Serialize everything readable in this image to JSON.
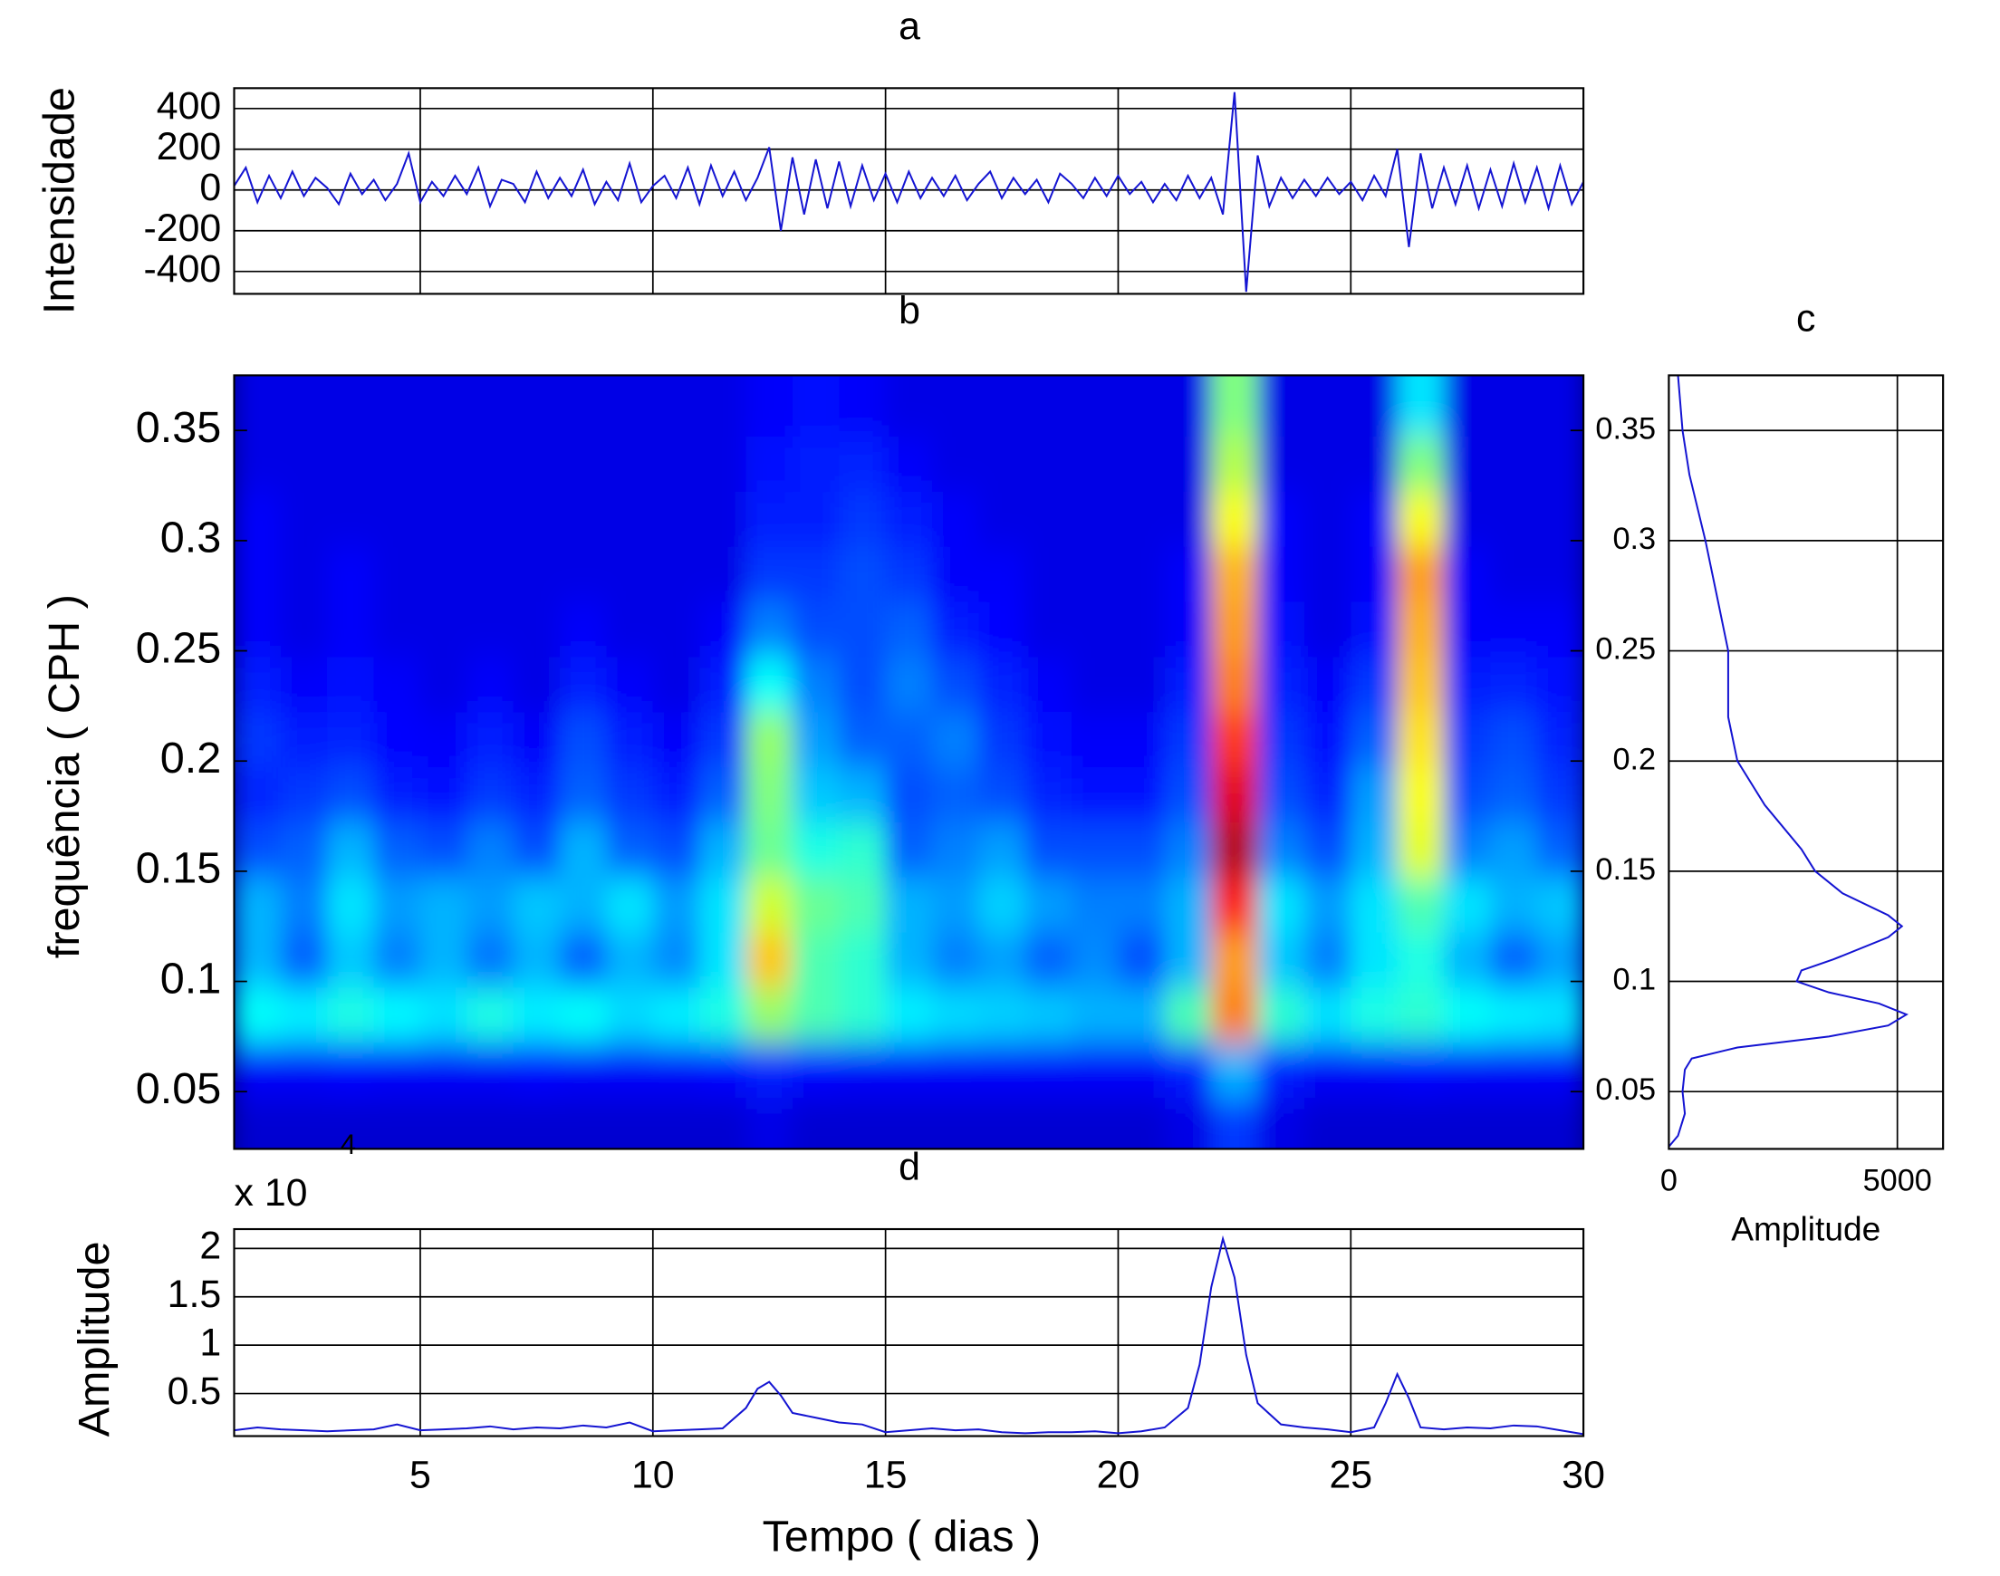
{
  "chart_data": [
    {
      "type": "line",
      "title": "a",
      "ylabel": "Intensidade",
      "color": "#1414d2",
      "grid": true,
      "xtick_labels": false,
      "xlim": [
        1,
        30
      ],
      "xticks": [
        5,
        10,
        15,
        20,
        25,
        30
      ],
      "ylim": [
        -510,
        500
      ],
      "yticks": [
        400,
        200,
        0,
        -200,
        -400
      ],
      "x": [
        1,
        1.25,
        1.5,
        1.75,
        2,
        2.25,
        2.5,
        2.75,
        3,
        3.25,
        3.5,
        3.75,
        4,
        4.25,
        4.5,
        4.75,
        5,
        5.25,
        5.5,
        5.75,
        6,
        6.25,
        6.5,
        6.75,
        7,
        7.25,
        7.5,
        7.75,
        8,
        8.25,
        8.5,
        8.75,
        9,
        9.25,
        9.5,
        9.75,
        10,
        10.25,
        10.5,
        10.75,
        11,
        11.25,
        11.5,
        11.75,
        12,
        12.25,
        12.5,
        12.75,
        13,
        13.25,
        13.5,
        13.75,
        14,
        14.25,
        14.5,
        14.75,
        15,
        15.25,
        15.5,
        15.75,
        16,
        16.25,
        16.5,
        16.75,
        17,
        17.25,
        17.5,
        17.75,
        18,
        18.25,
        18.5,
        18.75,
        19,
        19.25,
        19.5,
        19.75,
        20,
        20.25,
        20.5,
        20.75,
        21,
        21.25,
        21.5,
        21.75,
        22,
        22.25,
        22.5,
        22.75,
        23,
        23.25,
        23.5,
        23.75,
        24,
        24.25,
        24.5,
        24.75,
        25,
        25.25,
        25.5,
        25.75,
        26,
        26.25,
        26.5,
        26.75,
        27,
        27.25,
        27.5,
        27.75,
        28,
        28.25,
        28.5,
        28.75,
        29,
        29.25,
        29.5,
        29.75,
        30
      ],
      "values": [
        20,
        110,
        -60,
        70,
        -40,
        90,
        -30,
        60,
        10,
        -70,
        80,
        -20,
        50,
        -50,
        30,
        180,
        -60,
        40,
        -30,
        70,
        -20,
        110,
        -80,
        50,
        30,
        -60,
        90,
        -40,
        60,
        -30,
        100,
        -70,
        40,
        -50,
        130,
        -60,
        20,
        70,
        -40,
        110,
        -70,
        120,
        -30,
        90,
        -50,
        60,
        210,
        -200,
        160,
        -120,
        150,
        -90,
        140,
        -80,
        120,
        -50,
        80,
        -60,
        90,
        -40,
        60,
        -30,
        70,
        -50,
        30,
        90,
        -40,
        60,
        -20,
        50,
        -60,
        80,
        30,
        -40,
        60,
        -30,
        70,
        -20,
        40,
        -60,
        30,
        -50,
        70,
        -40,
        60,
        -120,
        480,
        -500,
        170,
        -80,
        60,
        -40,
        50,
        -30,
        60,
        -20,
        40,
        -50,
        70,
        -30,
        200,
        -280,
        180,
        -90,
        110,
        -70,
        120,
        -90,
        100,
        -80,
        130,
        -60,
        110,
        -90,
        120,
        -70,
        40
      ]
    },
    {
      "type": "heatmap",
      "title": "b",
      "ylabel": "frequência ( CPH )",
      "grid": false,
      "colormap": "jet",
      "xlim": [
        1,
        30
      ],
      "ylim": [
        0.024,
        0.375
      ],
      "yticks": [
        0.05,
        0.1,
        0.15,
        0.2,
        0.25,
        0.3,
        0.35
      ],
      "x": [
        1.5,
        2.5,
        3.5,
        4.5,
        5.5,
        6.5,
        7.5,
        8.5,
        9.5,
        10.5,
        11.5,
        12.5,
        13.5,
        14.5,
        15.5,
        16.5,
        17.5,
        18.5,
        19.5,
        20.5,
        21.5,
        22.5,
        23.5,
        24.5,
        25.5,
        26.5,
        27.5,
        28.5,
        29.5
      ],
      "y": [
        0.035,
        0.06,
        0.085,
        0.11,
        0.135,
        0.16,
        0.185,
        0.21,
        0.235,
        0.26,
        0.285,
        0.31,
        0.335,
        0.36
      ],
      "z": [
        [
          0.08,
          0.08,
          0.08,
          0.08,
          0.08,
          0.08,
          0.08,
          0.08,
          0.08,
          0.08,
          0.08,
          0.1,
          0.08,
          0.08,
          0.08,
          0.08,
          0.08,
          0.08,
          0.08,
          0.08,
          0.1,
          0.18,
          0.1,
          0.08,
          0.08,
          0.08,
          0.08,
          0.08,
          0.08
        ],
        [
          0.12,
          0.12,
          0.13,
          0.12,
          0.12,
          0.12,
          0.13,
          0.12,
          0.12,
          0.12,
          0.13,
          0.15,
          0.13,
          0.12,
          0.12,
          0.12,
          0.12,
          0.12,
          0.12,
          0.12,
          0.15,
          0.3,
          0.15,
          0.12,
          0.12,
          0.13,
          0.12,
          0.12,
          0.12
        ],
        [
          0.38,
          0.36,
          0.4,
          0.37,
          0.35,
          0.4,
          0.36,
          0.38,
          0.34,
          0.36,
          0.4,
          0.52,
          0.45,
          0.42,
          0.36,
          0.34,
          0.33,
          0.32,
          0.3,
          0.3,
          0.45,
          0.75,
          0.42,
          0.35,
          0.4,
          0.42,
          0.38,
          0.36,
          0.35
        ],
        [
          0.3,
          0.22,
          0.32,
          0.25,
          0.3,
          0.24,
          0.3,
          0.22,
          0.3,
          0.26,
          0.35,
          0.68,
          0.45,
          0.42,
          0.3,
          0.25,
          0.28,
          0.22,
          0.26,
          0.2,
          0.3,
          0.72,
          0.32,
          0.25,
          0.35,
          0.4,
          0.3,
          0.22,
          0.28
        ],
        [
          0.3,
          0.25,
          0.35,
          0.28,
          0.3,
          0.28,
          0.32,
          0.3,
          0.35,
          0.28,
          0.35,
          0.58,
          0.48,
          0.45,
          0.3,
          0.28,
          0.33,
          0.28,
          0.25,
          0.25,
          0.3,
          0.85,
          0.35,
          0.28,
          0.35,
          0.45,
          0.35,
          0.3,
          0.32
        ],
        [
          0.2,
          0.22,
          0.3,
          0.22,
          0.2,
          0.25,
          0.2,
          0.3,
          0.22,
          0.2,
          0.3,
          0.48,
          0.4,
          0.42,
          0.22,
          0.25,
          0.28,
          0.2,
          0.2,
          0.2,
          0.25,
          0.95,
          0.25,
          0.2,
          0.3,
          0.6,
          0.25,
          0.28,
          0.22
        ],
        [
          0.16,
          0.18,
          0.2,
          0.15,
          0.14,
          0.18,
          0.16,
          0.22,
          0.18,
          0.15,
          0.22,
          0.5,
          0.32,
          0.3,
          0.2,
          0.22,
          0.2,
          0.16,
          0.14,
          0.14,
          0.2,
          0.9,
          0.2,
          0.16,
          0.28,
          0.62,
          0.2,
          0.22,
          0.18
        ],
        [
          0.18,
          0.15,
          0.16,
          0.13,
          0.12,
          0.15,
          0.12,
          0.2,
          0.15,
          0.12,
          0.18,
          0.52,
          0.28,
          0.22,
          0.22,
          0.25,
          0.18,
          0.14,
          0.12,
          0.12,
          0.18,
          0.82,
          0.18,
          0.14,
          0.22,
          0.65,
          0.18,
          0.2,
          0.16
        ],
        [
          0.15,
          0.12,
          0.14,
          0.12,
          0.1,
          0.12,
          0.1,
          0.15,
          0.12,
          0.1,
          0.15,
          0.38,
          0.25,
          0.2,
          0.25,
          0.2,
          0.16,
          0.12,
          0.1,
          0.1,
          0.15,
          0.75,
          0.16,
          0.12,
          0.18,
          0.68,
          0.15,
          0.16,
          0.14
        ],
        [
          0.12,
          0.1,
          0.12,
          0.1,
          0.1,
          0.1,
          0.1,
          0.12,
          0.1,
          0.1,
          0.12,
          0.25,
          0.2,
          0.2,
          0.22,
          0.15,
          0.13,
          0.1,
          0.1,
          0.1,
          0.12,
          0.72,
          0.14,
          0.1,
          0.14,
          0.7,
          0.12,
          0.12,
          0.12
        ],
        [
          0.12,
          0.1,
          0.12,
          0.1,
          0.1,
          0.1,
          0.1,
          0.1,
          0.1,
          0.1,
          0.1,
          0.18,
          0.18,
          0.2,
          0.18,
          0.12,
          0.12,
          0.1,
          0.1,
          0.1,
          0.12,
          0.7,
          0.12,
          0.1,
          0.12,
          0.72,
          0.12,
          0.1,
          0.1
        ],
        [
          0.12,
          0.1,
          0.1,
          0.1,
          0.1,
          0.1,
          0.1,
          0.1,
          0.1,
          0.1,
          0.1,
          0.15,
          0.15,
          0.18,
          0.15,
          0.12,
          0.1,
          0.1,
          0.1,
          0.1,
          0.1,
          0.62,
          0.12,
          0.1,
          0.12,
          0.62,
          0.1,
          0.1,
          0.1
        ],
        [
          0.1,
          0.1,
          0.1,
          0.1,
          0.1,
          0.1,
          0.1,
          0.1,
          0.1,
          0.1,
          0.1,
          0.14,
          0.15,
          0.16,
          0.12,
          0.1,
          0.1,
          0.1,
          0.1,
          0.1,
          0.1,
          0.55,
          0.1,
          0.1,
          0.1,
          0.5,
          0.1,
          0.1,
          0.1
        ],
        [
          0.1,
          0.1,
          0.1,
          0.1,
          0.1,
          0.1,
          0.1,
          0.1,
          0.1,
          0.1,
          0.1,
          0.12,
          0.14,
          0.12,
          0.1,
          0.1,
          0.1,
          0.1,
          0.1,
          0.1,
          0.1,
          0.5,
          0.1,
          0.1,
          0.1,
          0.35,
          0.1,
          0.1,
          0.1
        ]
      ]
    },
    {
      "type": "line",
      "orientation": "horizontal",
      "title": "c",
      "xlabel": "Amplitude",
      "color": "#1414d2",
      "grid": true,
      "xlim": [
        0,
        6000
      ],
      "xticks": [
        0,
        5000
      ],
      "ylim": [
        0.024,
        0.375
      ],
      "yticks": [
        0.05,
        0.1,
        0.15,
        0.2,
        0.25,
        0.3,
        0.35
      ],
      "y": [
        0.025,
        0.03,
        0.04,
        0.05,
        0.06,
        0.065,
        0.07,
        0.075,
        0.08,
        0.085,
        0.09,
        0.095,
        0.1,
        0.105,
        0.11,
        0.12,
        0.125,
        0.13,
        0.14,
        0.15,
        0.16,
        0.18,
        0.2,
        0.22,
        0.25,
        0.27,
        0.3,
        0.33,
        0.35,
        0.375
      ],
      "values": [
        0,
        200,
        350,
        300,
        350,
        500,
        1500,
        3500,
        4800,
        5200,
        4600,
        3500,
        2800,
        2900,
        3600,
        4800,
        5100,
        4800,
        3800,
        3200,
        2900,
        2100,
        1500,
        1300,
        1300,
        1100,
        800,
        450,
        300,
        200
      ]
    },
    {
      "type": "line",
      "title": "d",
      "ylabel": "Amplitude",
      "xlabel": "Tempo ( dias )",
      "color": "#1414d2",
      "grid": true,
      "y_multiplier": {
        "base": "x 10",
        "exponent": "4"
      },
      "xlim": [
        1,
        30
      ],
      "xticks": [
        5,
        10,
        15,
        20,
        25,
        30
      ],
      "ylim": [
        0.06,
        2.2
      ],
      "yticks": [
        0.5,
        1,
        1.5,
        2
      ],
      "x": [
        1,
        1.5,
        2,
        2.5,
        3,
        3.5,
        4,
        4.5,
        5,
        5.5,
        6,
        6.5,
        7,
        7.5,
        8,
        8.5,
        9,
        9.5,
        10,
        10.5,
        11,
        11.5,
        12,
        12.25,
        12.5,
        12.75,
        13,
        13.5,
        14,
        14.5,
        15,
        15.5,
        16,
        16.5,
        17,
        17.5,
        18,
        18.5,
        19,
        19.5,
        20,
        20.5,
        21,
        21.5,
        21.75,
        22,
        22.25,
        22.5,
        22.75,
        23,
        23.5,
        24,
        24.5,
        25,
        25.5,
        25.75,
        26,
        26.25,
        26.5,
        27,
        27.5,
        28,
        28.5,
        29,
        29.5,
        30
      ],
      "values": [
        0.12,
        0.15,
        0.13,
        0.12,
        0.11,
        0.12,
        0.13,
        0.18,
        0.12,
        0.13,
        0.14,
        0.16,
        0.13,
        0.15,
        0.14,
        0.17,
        0.15,
        0.2,
        0.11,
        0.12,
        0.13,
        0.14,
        0.35,
        0.55,
        0.62,
        0.48,
        0.3,
        0.25,
        0.2,
        0.18,
        0.1,
        0.12,
        0.14,
        0.12,
        0.13,
        0.1,
        0.09,
        0.1,
        0.1,
        0.11,
        0.09,
        0.11,
        0.15,
        0.35,
        0.8,
        1.6,
        2.1,
        1.7,
        0.9,
        0.4,
        0.18,
        0.15,
        0.13,
        0.1,
        0.15,
        0.4,
        0.7,
        0.45,
        0.15,
        0.13,
        0.15,
        0.14,
        0.17,
        0.16,
        0.12,
        0.08
      ]
    }
  ]
}
